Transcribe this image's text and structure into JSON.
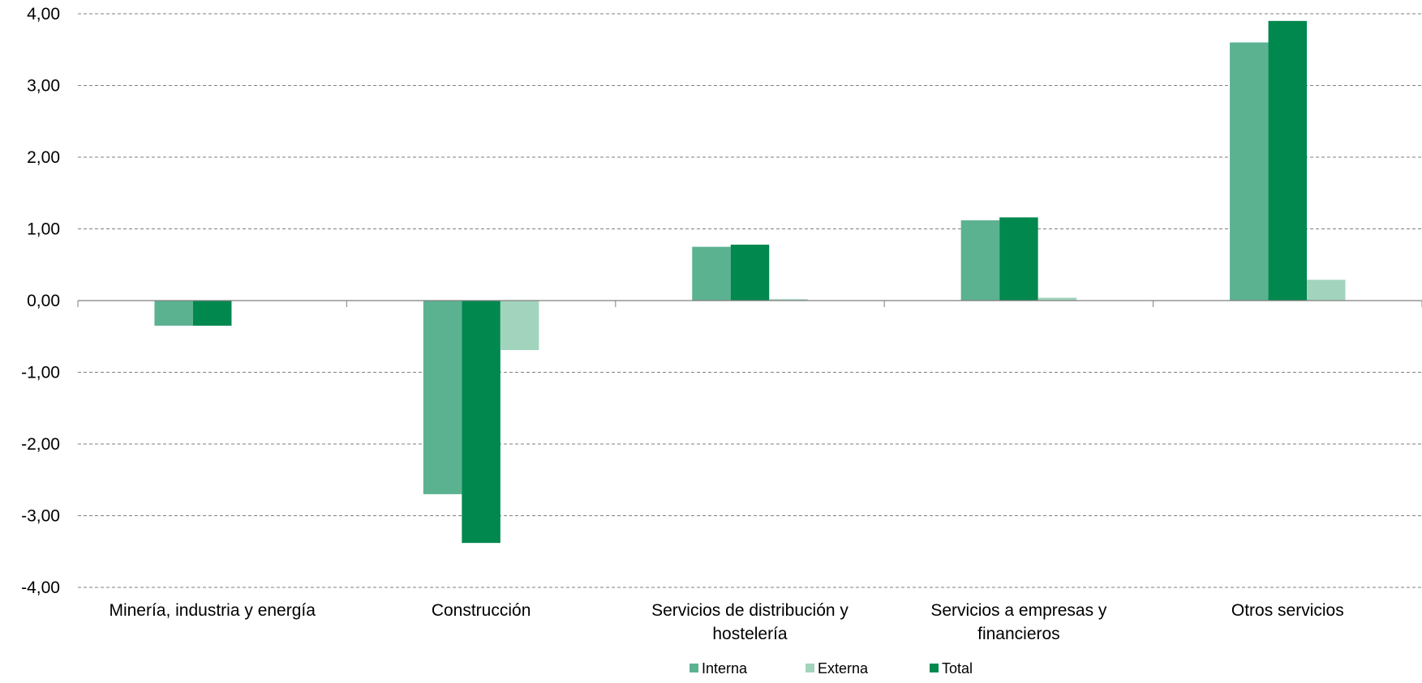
{
  "chart_data": {
    "type": "bar",
    "title": "",
    "xlabel": "",
    "ylabel": "",
    "ylim": [
      -4,
      4
    ],
    "yticks": [
      4,
      3,
      2,
      1,
      0,
      -1,
      -2,
      -3,
      -4
    ],
    "ytick_labels": [
      "4,00",
      "3,00",
      "2,00",
      "1,00",
      "0,00",
      "-1,00",
      "-2,00",
      "-3,00",
      "-4,00"
    ],
    "grid": "horizontal dashed",
    "legend_position": "bottom-center",
    "categories": [
      [
        "Minería, industria y energía"
      ],
      [
        "Construcción"
      ],
      [
        "Servicios de distribución y",
        "hostelería"
      ],
      [
        "Servicios a empresas y",
        "financieros"
      ],
      [
        "Otros servicios"
      ]
    ],
    "series": [
      {
        "name": "Interna",
        "color": "#5bb291",
        "values": [
          -0.35,
          -2.7,
          0.75,
          1.12,
          3.6
        ]
      },
      {
        "name": "Total",
        "color": "#00884e",
        "values": [
          -0.35,
          -3.38,
          0.78,
          1.16,
          3.9
        ]
      },
      {
        "name": "Externa",
        "color": "#a2d4bd",
        "values": [
          0.0,
          -0.69,
          0.02,
          0.04,
          0.29
        ]
      }
    ],
    "legend_order": [
      "Interna",
      "Externa",
      "Total"
    ]
  }
}
